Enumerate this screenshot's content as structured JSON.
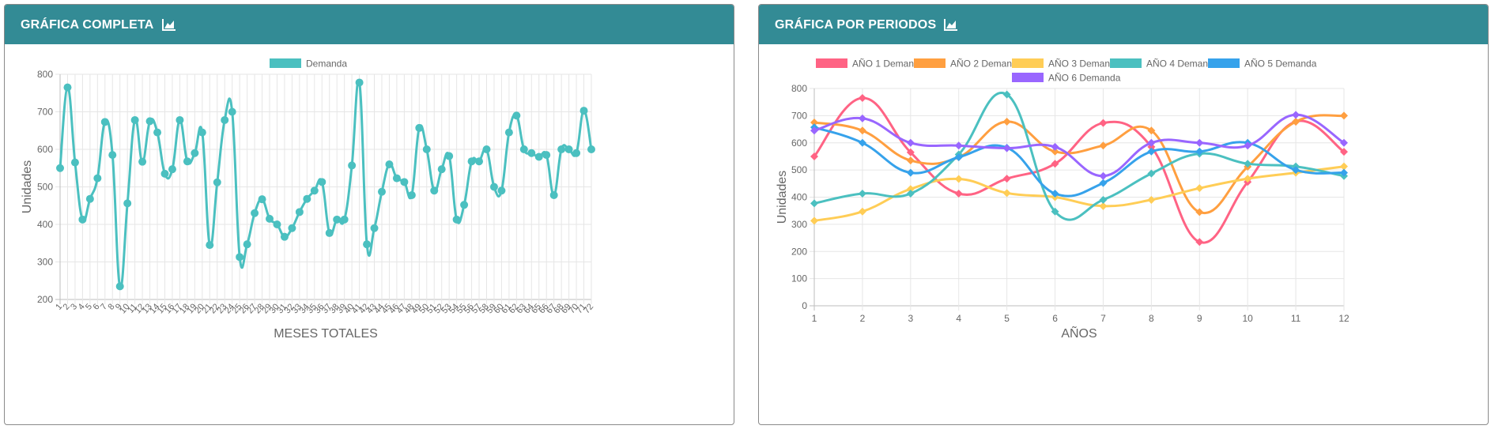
{
  "cards": [
    {
      "title": "GRÁFICA COMPLETA",
      "icon": "area-chart-icon"
    },
    {
      "title": "GRÁFICA POR PERIODOS",
      "icon": "area-chart-icon"
    }
  ],
  "chart_data": [
    {
      "type": "line",
      "xlabel": "MESES TOTALES",
      "ylabel": "Unidades",
      "ylim": [
        200,
        800
      ],
      "yticks": [
        200,
        300,
        400,
        500,
        600,
        700,
        800
      ],
      "grid": true,
      "legend": "top-center",
      "categories": [
        "1",
        "2",
        "3",
        "4",
        "5",
        "6",
        "7",
        "8",
        "9",
        "10",
        "11",
        "12",
        "13",
        "14",
        "15",
        "16",
        "17",
        "18",
        "19",
        "20",
        "21",
        "22",
        "23",
        "24",
        "25",
        "26",
        "27",
        "28",
        "29",
        "30",
        "31",
        "32",
        "33",
        "34",
        "35",
        "36",
        "37",
        "38",
        "39",
        "40",
        "41",
        "42",
        "43",
        "44",
        "45",
        "46",
        "47",
        "48",
        "49",
        "50",
        "51",
        "52",
        "53",
        "54",
        "55",
        "56",
        "57",
        "58",
        "59",
        "60",
        "61",
        "62",
        "63",
        "64",
        "65",
        "66",
        "67",
        "68",
        "69",
        "70",
        "71",
        "72"
      ],
      "series": [
        {
          "name": "Demanda",
          "color": "#4bc0c0",
          "values": [
            550,
            765,
            565,
            413,
            468,
            523,
            673,
            585,
            235,
            456,
            678,
            567,
            675,
            645,
            535,
            547,
            678,
            568,
            590,
            645,
            345,
            512,
            678,
            700,
            313,
            347,
            430,
            467,
            415,
            400,
            367,
            390,
            433,
            468,
            490,
            513,
            377,
            413,
            413,
            557,
            778,
            347,
            390,
            487,
            560,
            523,
            513,
            478,
            657,
            600,
            490,
            547,
            582,
            413,
            452,
            568,
            568,
            600,
            500,
            490,
            645,
            690,
            600,
            590,
            580,
            585,
            478,
            600,
            600,
            590,
            703,
            600
          ]
        }
      ]
    },
    {
      "type": "line",
      "xlabel": "AÑOS",
      "ylabel": "Unidades",
      "ylim": [
        0,
        800
      ],
      "yticks": [
        0,
        100,
        200,
        300,
        400,
        500,
        600,
        700,
        800
      ],
      "grid": true,
      "legend": "top-center",
      "categories": [
        "1",
        "2",
        "3",
        "4",
        "5",
        "6",
        "7",
        "8",
        "9",
        "10",
        "11",
        "12"
      ],
      "series": [
        {
          "name": "AÑO 1 Demanda",
          "color": "#ff6384",
          "values": [
            550,
            765,
            565,
            413,
            468,
            523,
            673,
            585,
            235,
            456,
            678,
            567
          ]
        },
        {
          "name": "AÑO 2 Demanda",
          "color": "#ff9f40",
          "values": [
            675,
            645,
            535,
            547,
            678,
            568,
            590,
            645,
            345,
            512,
            678,
            700
          ]
        },
        {
          "name": "AÑO 3 Demanda",
          "color": "#ffcd56",
          "values": [
            313,
            347,
            430,
            467,
            415,
            400,
            367,
            390,
            433,
            468,
            490,
            513
          ]
        },
        {
          "name": "AÑO 4 Demanda",
          "color": "#4bc0c0",
          "values": [
            377,
            413,
            413,
            557,
            778,
            347,
            390,
            487,
            560,
            523,
            513,
            478
          ]
        },
        {
          "name": "AÑO 5 Demanda",
          "color": "#36a2eb",
          "values": [
            657,
            600,
            490,
            547,
            582,
            413,
            452,
            568,
            568,
            600,
            500,
            490
          ]
        },
        {
          "name": "AÑO 6 Demanda",
          "color": "#9966ff",
          "values": [
            645,
            690,
            600,
            590,
            580,
            585,
            478,
            600,
            600,
            590,
            703,
            600
          ]
        }
      ]
    }
  ]
}
